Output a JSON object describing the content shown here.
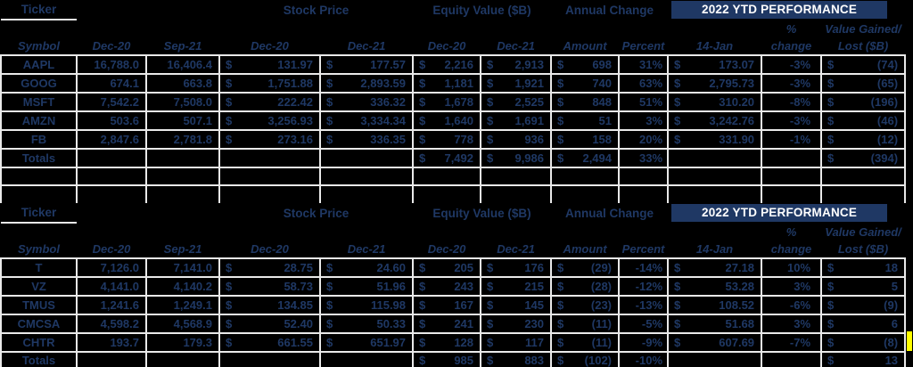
{
  "dollar": "$",
  "colors": {
    "background": "#000000",
    "text": "#1f3864",
    "gridline": "#e9e9e9",
    "banner_background": "#1f3864",
    "banner_text": "#ffffff",
    "selection_highlight": "#ffff00"
  },
  "tables": [
    {
      "headers": {
        "ticker": "Ticker",
        "stock": "Stock Price",
        "equity": "Equity Value ($B)",
        "annual": "Annual Change",
        "ytd": "2022 YTD PERFORMANCE",
        "pct_line1": "%",
        "value_line1": "Value Gained/"
      },
      "sub": {
        "symbol": "Symbol",
        "shares_a": "Dec-20",
        "shares_b": "Sep-21",
        "price_a": "Dec-20",
        "price_b": "Dec-21",
        "eq_a": "Dec-20",
        "eq_b": "Dec-21",
        "amount": "Amount",
        "pct": "Percent",
        "jan14": "14-Jan",
        "ytd_pct": "change",
        "value": "Lost ($B)"
      },
      "rows": [
        {
          "symbol": "AAPL",
          "shares_a": "16,788.0",
          "shares_b": "16,406.4",
          "price_a": "131.97",
          "price_b": "177.57",
          "eq_a": "2,216",
          "eq_b": "2,913",
          "amount": "698",
          "pct": "31%",
          "jan14": "173.07",
          "ytd_pct": "-3%",
          "value": "(74)"
        },
        {
          "symbol": "GOOG",
          "shares_a": "674.1",
          "shares_b": "663.8",
          "price_a": "1,751.88",
          "price_b": "2,893.59",
          "eq_a": "1,181",
          "eq_b": "1,921",
          "amount": "740",
          "pct": "63%",
          "jan14": "2,795.73",
          "ytd_pct": "-3%",
          "value": "(65)"
        },
        {
          "symbol": "MSFT",
          "shares_a": "7,542.2",
          "shares_b": "7,508.0",
          "price_a": "222.42",
          "price_b": "336.32",
          "eq_a": "1,678",
          "eq_b": "2,525",
          "amount": "848",
          "pct": "51%",
          "jan14": "310.20",
          "ytd_pct": "-8%",
          "value": "(196)"
        },
        {
          "symbol": "AMZN",
          "shares_a": "503.6",
          "shares_b": "507.1",
          "price_a": "3,256.93",
          "price_b": "3,334.34",
          "eq_a": "1,640",
          "eq_b": "1,691",
          "amount": "51",
          "pct": "3%",
          "jan14": "3,242.76",
          "ytd_pct": "-3%",
          "value": "(46)"
        },
        {
          "symbol": "FB",
          "shares_a": "2,847.6",
          "shares_b": "2,781.8",
          "price_a": "273.16",
          "price_b": "336.35",
          "eq_a": "778",
          "eq_b": "936",
          "amount": "158",
          "pct": "20%",
          "jan14": "331.90",
          "ytd_pct": "-1%",
          "value": "(12)"
        }
      ],
      "totals": {
        "symbol": "Totals",
        "shares_a": "",
        "shares_b": "",
        "price_a": "",
        "price_b": "",
        "eq_a": "7,492",
        "eq_b": "9,986",
        "amount": "2,494",
        "pct": "33%",
        "jan14": "",
        "ytd_pct": "",
        "value": "(394)"
      }
    },
    {
      "headers": {
        "ticker": "Ticker",
        "stock": "Stock Price",
        "equity": "Equity Value ($B)",
        "annual": "Annual Change",
        "ytd": "2022 YTD PERFORMANCE",
        "pct_line1": "%",
        "value_line1": "Value Gained/"
      },
      "sub": {
        "symbol": "Symbol",
        "shares_a": "Dec-20",
        "shares_b": "Sep-21",
        "price_a": "Dec-20",
        "price_b": "Dec-21",
        "eq_a": "Dec-20",
        "eq_b": "Dec-21",
        "amount": "Amount",
        "pct": "Percent",
        "jan14": "14-Jan",
        "ytd_pct": "change",
        "value": "Lost ($B)"
      },
      "rows": [
        {
          "symbol": "T",
          "shares_a": "7,126.0",
          "shares_b": "7,141.0",
          "price_a": "28.75",
          "price_b": "24.60",
          "eq_a": "205",
          "eq_b": "176",
          "amount": "(29)",
          "pct": "-14%",
          "jan14": "27.18",
          "ytd_pct": "10%",
          "value": "18"
        },
        {
          "symbol": "VZ",
          "shares_a": "4,141.0",
          "shares_b": "4,140.2",
          "price_a": "58.73",
          "price_b": "51.96",
          "eq_a": "243",
          "eq_b": "215",
          "amount": "(28)",
          "pct": "-12%",
          "jan14": "53.28",
          "ytd_pct": "3%",
          "value": "5"
        },
        {
          "symbol": "TMUS",
          "shares_a": "1,241.6",
          "shares_b": "1,249.1",
          "price_a": "134.85",
          "price_b": "115.98",
          "eq_a": "167",
          "eq_b": "145",
          "amount": "(23)",
          "pct": "-13%",
          "jan14": "108.52",
          "ytd_pct": "-6%",
          "value": "(9)"
        },
        {
          "symbol": "CMCSA",
          "shares_a": "4,598.2",
          "shares_b": "4,568.9",
          "price_a": "52.40",
          "price_b": "50.33",
          "eq_a": "241",
          "eq_b": "230",
          "amount": "(11)",
          "pct": "-5%",
          "jan14": "51.68",
          "ytd_pct": "3%",
          "value": "6"
        },
        {
          "symbol": "CHTR",
          "shares_a": "193.7",
          "shares_b": "179.3",
          "price_a": "661.55",
          "price_b": "651.97",
          "eq_a": "128",
          "eq_b": "117",
          "amount": "(11)",
          "pct": "-9%",
          "jan14": "607.69",
          "ytd_pct": "-7%",
          "value": "(8)"
        }
      ],
      "totals": {
        "symbol": "Totals",
        "shares_a": "",
        "shares_b": "",
        "price_a": "",
        "price_b": "",
        "eq_a": "985",
        "eq_b": "883",
        "amount": "(102)",
        "pct": "-10%",
        "jan14": "",
        "ytd_pct": "",
        "value": "13"
      }
    }
  ]
}
